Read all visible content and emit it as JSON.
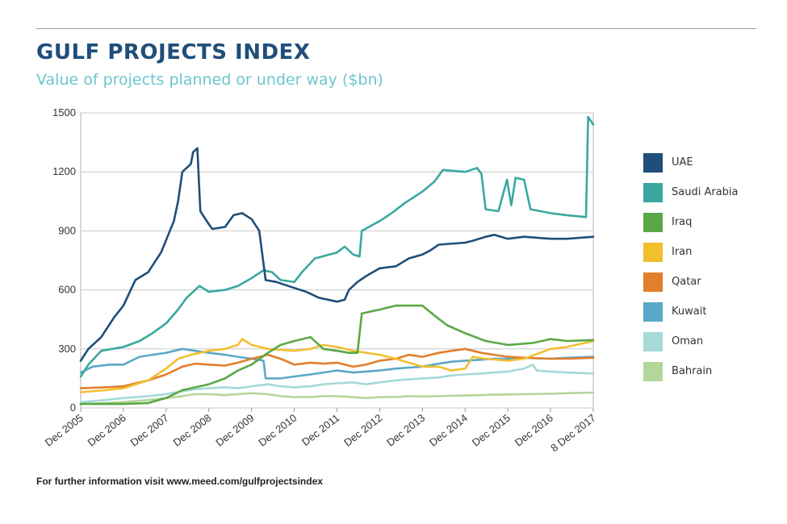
{
  "header": {
    "title": "GULF PROJECTS INDEX",
    "subtitle": "Value of projects planned or under way ($bn)"
  },
  "footer": {
    "text": "For further information visit www.meed.com/gulfprojectsindex"
  },
  "chart_data": {
    "type": "line",
    "title": "GULF PROJECTS INDEX",
    "subtitle": "Value of projects planned or under way ($bn)",
    "xlabel": "",
    "ylabel": "",
    "ylim": [
      0,
      1500
    ],
    "yticks": [
      0,
      300,
      600,
      900,
      1200,
      1500
    ],
    "xlim": [
      2005.92,
      2017.92
    ],
    "xtick_positions": [
      2005.92,
      2006.92,
      2007.92,
      2008.92,
      2009.92,
      2010.92,
      2011.92,
      2012.92,
      2013.92,
      2014.92,
      2015.92,
      2016.92,
      2017.92
    ],
    "xtick_labels": [
      "Dec 2005",
      "Dec 2006",
      "Dec 2007",
      "Dec 2008",
      "Dec 2009",
      "Dec 2010",
      "Dec 2011",
      "Dec 2012",
      "Dec 2013",
      "Dec 2014",
      "Dec 2015",
      "Dec 2016",
      "8 Dec 2017"
    ],
    "grid": "horizontal",
    "legend_position": "right",
    "series": [
      {
        "name": "UAE",
        "color": "#1f4e79",
        "points": [
          [
            2005.92,
            240
          ],
          [
            2006.1,
            300
          ],
          [
            2006.4,
            360
          ],
          [
            2006.7,
            460
          ],
          [
            2006.92,
            520
          ],
          [
            2007.2,
            650
          ],
          [
            2007.5,
            690
          ],
          [
            2007.8,
            790
          ],
          [
            2008.1,
            950
          ],
          [
            2008.2,
            1050
          ],
          [
            2008.3,
            1200
          ],
          [
            2008.5,
            1240
          ],
          [
            2008.55,
            1300
          ],
          [
            2008.65,
            1320
          ],
          [
            2008.72,
            1000
          ],
          [
            2008.9,
            940
          ],
          [
            2009.0,
            910
          ],
          [
            2009.3,
            920
          ],
          [
            2009.5,
            980
          ],
          [
            2009.7,
            990
          ],
          [
            2009.92,
            960
          ],
          [
            2010.1,
            900
          ],
          [
            2010.25,
            650
          ],
          [
            2010.5,
            640
          ],
          [
            2010.92,
            610
          ],
          [
            2011.2,
            590
          ],
          [
            2011.5,
            560
          ],
          [
            2011.92,
            540
          ],
          [
            2012.1,
            550
          ],
          [
            2012.2,
            600
          ],
          [
            2012.4,
            640
          ],
          [
            2012.6,
            670
          ],
          [
            2012.92,
            710
          ],
          [
            2013.3,
            720
          ],
          [
            2013.6,
            760
          ],
          [
            2013.92,
            780
          ],
          [
            2014.1,
            800
          ],
          [
            2014.3,
            830
          ],
          [
            2014.92,
            840
          ],
          [
            2015.1,
            850
          ],
          [
            2015.4,
            870
          ],
          [
            2015.6,
            880
          ],
          [
            2015.92,
            860
          ],
          [
            2016.3,
            870
          ],
          [
            2016.92,
            860
          ],
          [
            2017.3,
            860
          ],
          [
            2017.92,
            870
          ]
        ]
      },
      {
        "name": "Saudi Arabia",
        "color": "#3aa8a0",
        "points": [
          [
            2005.92,
            160
          ],
          [
            2006.1,
            220
          ],
          [
            2006.4,
            290
          ],
          [
            2006.92,
            310
          ],
          [
            2007.3,
            340
          ],
          [
            2007.6,
            380
          ],
          [
            2007.92,
            430
          ],
          [
            2008.2,
            500
          ],
          [
            2008.4,
            560
          ],
          [
            2008.7,
            620
          ],
          [
            2008.92,
            590
          ],
          [
            2009.3,
            600
          ],
          [
            2009.6,
            620
          ],
          [
            2009.92,
            660
          ],
          [
            2010.2,
            700
          ],
          [
            2010.4,
            690
          ],
          [
            2010.6,
            650
          ],
          [
            2010.92,
            640
          ],
          [
            2011.1,
            690
          ],
          [
            2011.4,
            760
          ],
          [
            2011.92,
            790
          ],
          [
            2012.1,
            820
          ],
          [
            2012.3,
            780
          ],
          [
            2012.45,
            770
          ],
          [
            2012.5,
            900
          ],
          [
            2012.92,
            950
          ],
          [
            2013.2,
            990
          ],
          [
            2013.5,
            1040
          ],
          [
            2013.92,
            1100
          ],
          [
            2014.2,
            1150
          ],
          [
            2014.4,
            1210
          ],
          [
            2014.92,
            1200
          ],
          [
            2015.2,
            1220
          ],
          [
            2015.3,
            1190
          ],
          [
            2015.4,
            1010
          ],
          [
            2015.7,
            1000
          ],
          [
            2015.9,
            1160
          ],
          [
            2016.0,
            1030
          ],
          [
            2016.1,
            1170
          ],
          [
            2016.3,
            1160
          ],
          [
            2016.45,
            1010
          ],
          [
            2016.92,
            990
          ],
          [
            2017.3,
            980
          ],
          [
            2017.75,
            970
          ],
          [
            2017.8,
            1480
          ],
          [
            2017.92,
            1440
          ]
        ]
      },
      {
        "name": "Iraq",
        "color": "#5aa845",
        "points": [
          [
            2005.92,
            20
          ],
          [
            2006.92,
            20
          ],
          [
            2007.5,
            25
          ],
          [
            2007.92,
            50
          ],
          [
            2008.3,
            90
          ],
          [
            2008.92,
            120
          ],
          [
            2009.3,
            150
          ],
          [
            2009.6,
            190
          ],
          [
            2009.92,
            220
          ],
          [
            2010.3,
            280
          ],
          [
            2010.6,
            320
          ],
          [
            2010.92,
            340
          ],
          [
            2011.3,
            360
          ],
          [
            2011.6,
            300
          ],
          [
            2011.92,
            290
          ],
          [
            2012.2,
            280
          ],
          [
            2012.4,
            280
          ],
          [
            2012.5,
            480
          ],
          [
            2012.92,
            500
          ],
          [
            2013.3,
            520
          ],
          [
            2013.92,
            520
          ],
          [
            2014.2,
            470
          ],
          [
            2014.5,
            420
          ],
          [
            2014.92,
            380
          ],
          [
            2015.4,
            340
          ],
          [
            2015.92,
            320
          ],
          [
            2016.5,
            330
          ],
          [
            2016.92,
            350
          ],
          [
            2017.3,
            340
          ],
          [
            2017.92,
            345
          ]
        ]
      },
      {
        "name": "Iran",
        "color": "#f2bf2f",
        "points": [
          [
            2005.92,
            80
          ],
          [
            2006.5,
            90
          ],
          [
            2006.92,
            100
          ],
          [
            2007.5,
            140
          ],
          [
            2007.92,
            200
          ],
          [
            2008.2,
            250
          ],
          [
            2008.5,
            270
          ],
          [
            2008.92,
            290
          ],
          [
            2009.3,
            300
          ],
          [
            2009.6,
            320
          ],
          [
            2009.7,
            350
          ],
          [
            2009.92,
            320
          ],
          [
            2010.3,
            300
          ],
          [
            2010.92,
            290
          ],
          [
            2011.3,
            300
          ],
          [
            2011.6,
            320
          ],
          [
            2011.92,
            310
          ],
          [
            2012.3,
            290
          ],
          [
            2012.92,
            270
          ],
          [
            2013.3,
            250
          ],
          [
            2013.6,
            230
          ],
          [
            2013.92,
            210
          ],
          [
            2014.3,
            210
          ],
          [
            2014.6,
            190
          ],
          [
            2014.92,
            200
          ],
          [
            2015.1,
            260
          ],
          [
            2015.4,
            250
          ],
          [
            2015.92,
            240
          ],
          [
            2016.3,
            250
          ],
          [
            2016.92,
            300
          ],
          [
            2017.3,
            310
          ],
          [
            2017.92,
            340
          ]
        ]
      },
      {
        "name": "Qatar",
        "color": "#e27f2c",
        "points": [
          [
            2005.92,
            100
          ],
          [
            2006.5,
            105
          ],
          [
            2006.92,
            110
          ],
          [
            2007.5,
            140
          ],
          [
            2007.92,
            170
          ],
          [
            2008.3,
            210
          ],
          [
            2008.6,
            225
          ],
          [
            2008.92,
            220
          ],
          [
            2009.3,
            215
          ],
          [
            2009.6,
            230
          ],
          [
            2009.92,
            250
          ],
          [
            2010.3,
            270
          ],
          [
            2010.6,
            250
          ],
          [
            2010.92,
            220
          ],
          [
            2011.3,
            230
          ],
          [
            2011.6,
            225
          ],
          [
            2011.92,
            230
          ],
          [
            2012.3,
            210
          ],
          [
            2012.6,
            220
          ],
          [
            2012.92,
            240
          ],
          [
            2013.3,
            250
          ],
          [
            2013.6,
            270
          ],
          [
            2013.92,
            260
          ],
          [
            2014.3,
            280
          ],
          [
            2014.6,
            290
          ],
          [
            2014.92,
            300
          ],
          [
            2015.3,
            280
          ],
          [
            2015.6,
            270
          ],
          [
            2015.92,
            260
          ],
          [
            2016.3,
            255
          ],
          [
            2016.92,
            250
          ],
          [
            2017.3,
            250
          ],
          [
            2017.92,
            255
          ]
        ]
      },
      {
        "name": "Kuwait",
        "color": "#5aa8c8",
        "points": [
          [
            2005.92,
            180
          ],
          [
            2006.2,
            210
          ],
          [
            2006.6,
            220
          ],
          [
            2006.92,
            220
          ],
          [
            2007.3,
            260
          ],
          [
            2007.6,
            270
          ],
          [
            2007.92,
            280
          ],
          [
            2008.3,
            300
          ],
          [
            2008.6,
            290
          ],
          [
            2008.92,
            280
          ],
          [
            2009.3,
            270
          ],
          [
            2009.6,
            260
          ],
          [
            2009.92,
            250
          ],
          [
            2010.2,
            240
          ],
          [
            2010.25,
            150
          ],
          [
            2010.6,
            150
          ],
          [
            2010.92,
            160
          ],
          [
            2011.3,
            170
          ],
          [
            2011.6,
            180
          ],
          [
            2011.92,
            190
          ],
          [
            2012.3,
            180
          ],
          [
            2012.6,
            185
          ],
          [
            2012.92,
            190
          ],
          [
            2013.3,
            200
          ],
          [
            2013.6,
            205
          ],
          [
            2013.92,
            210
          ],
          [
            2014.3,
            225
          ],
          [
            2014.6,
            235
          ],
          [
            2014.92,
            240
          ],
          [
            2015.3,
            245
          ],
          [
            2015.6,
            250
          ],
          [
            2015.92,
            250
          ],
          [
            2016.3,
            255
          ],
          [
            2016.92,
            250
          ],
          [
            2017.3,
            255
          ],
          [
            2017.92,
            260
          ]
        ]
      },
      {
        "name": "Oman",
        "color": "#a5dad8",
        "points": [
          [
            2005.92,
            30
          ],
          [
            2006.5,
            40
          ],
          [
            2006.92,
            50
          ],
          [
            2007.5,
            60
          ],
          [
            2007.92,
            70
          ],
          [
            2008.3,
            85
          ],
          [
            2008.6,
            95
          ],
          [
            2008.92,
            100
          ],
          [
            2009.3,
            105
          ],
          [
            2009.6,
            100
          ],
          [
            2009.92,
            110
          ],
          [
            2010.3,
            120
          ],
          [
            2010.6,
            110
          ],
          [
            2010.92,
            105
          ],
          [
            2011.3,
            110
          ],
          [
            2011.6,
            120
          ],
          [
            2011.92,
            125
          ],
          [
            2012.3,
            130
          ],
          [
            2012.6,
            120
          ],
          [
            2012.92,
            130
          ],
          [
            2013.3,
            140
          ],
          [
            2013.6,
            145
          ],
          [
            2013.92,
            150
          ],
          [
            2014.3,
            155
          ],
          [
            2014.6,
            165
          ],
          [
            2014.92,
            170
          ],
          [
            2015.3,
            175
          ],
          [
            2015.6,
            180
          ],
          [
            2015.92,
            185
          ],
          [
            2016.3,
            200
          ],
          [
            2016.5,
            220
          ],
          [
            2016.6,
            190
          ],
          [
            2016.92,
            185
          ],
          [
            2017.3,
            180
          ],
          [
            2017.92,
            175
          ]
        ]
      },
      {
        "name": "Bahrain",
        "color": "#b3d69a",
        "points": [
          [
            2005.92,
            20
          ],
          [
            2006.5,
            25
          ],
          [
            2006.92,
            30
          ],
          [
            2007.5,
            40
          ],
          [
            2007.92,
            50
          ],
          [
            2008.3,
            60
          ],
          [
            2008.6,
            70
          ],
          [
            2008.92,
            70
          ],
          [
            2009.3,
            65
          ],
          [
            2009.6,
            70
          ],
          [
            2009.92,
            75
          ],
          [
            2010.3,
            70
          ],
          [
            2010.6,
            60
          ],
          [
            2010.92,
            55
          ],
          [
            2011.3,
            55
          ],
          [
            2011.6,
            60
          ],
          [
            2011.92,
            60
          ],
          [
            2012.3,
            55
          ],
          [
            2012.6,
            50
          ],
          [
            2012.92,
            55
          ],
          [
            2013.3,
            55
          ],
          [
            2013.6,
            60
          ],
          [
            2013.92,
            58
          ],
          [
            2014.3,
            60
          ],
          [
            2014.6,
            62
          ],
          [
            2014.92,
            63
          ],
          [
            2015.3,
            65
          ],
          [
            2015.6,
            68
          ],
          [
            2015.92,
            68
          ],
          [
            2016.3,
            70
          ],
          [
            2016.92,
            72
          ],
          [
            2017.3,
            75
          ],
          [
            2017.92,
            78
          ]
        ]
      }
    ]
  }
}
